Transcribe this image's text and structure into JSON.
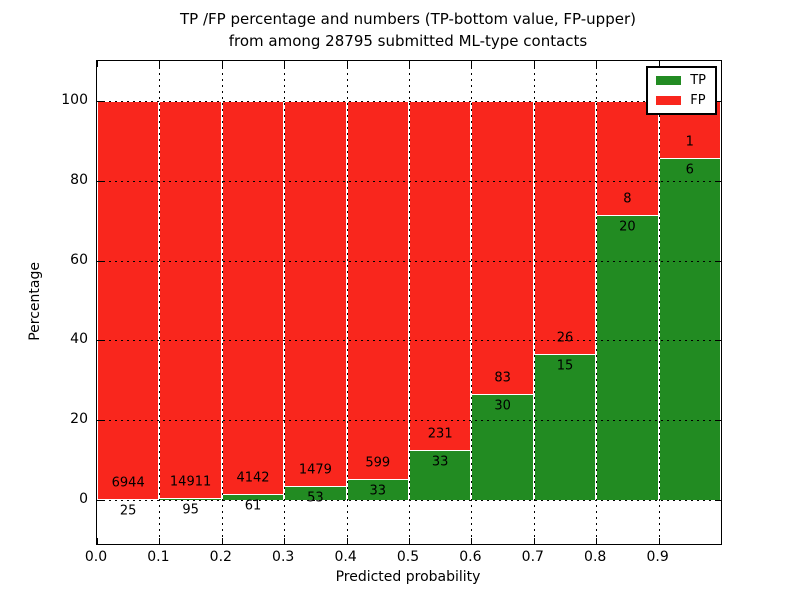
{
  "title": {
    "line1": "TP /FP percentage and numbers (TP-bottom value, FP-upper)",
    "line2": "from among 28795 submitted ML-type contacts"
  },
  "colors": {
    "tp_green": "#228b22",
    "fp_red": "#f9261d",
    "background": "#ffffff",
    "frame": "#000000",
    "grid": "#000000",
    "bar_edge": "#ffffff"
  },
  "chart_data": {
    "type": "bar",
    "stacked": true,
    "title": "TP /FP percentage and numbers (TP-bottom value, FP-upper) from among 28795 submitted ML-type contacts",
    "xlabel": "Predicted probability",
    "ylabel": "Percentage",
    "xlim": [
      0.0,
      1.0
    ],
    "ylim": [
      -11,
      110
    ],
    "xticks": [
      "0.0",
      "0.1",
      "0.2",
      "0.3",
      "0.4",
      "0.5",
      "0.6",
      "0.7",
      "0.8",
      "0.9"
    ],
    "yticks": [
      "0",
      "20",
      "40",
      "60",
      "80",
      "100"
    ],
    "ytick_values": [
      0,
      20,
      40,
      60,
      80,
      100
    ],
    "grid": true,
    "total_contacts": 28795,
    "legend": {
      "position": "upper right",
      "entries": [
        {
          "label": "TP",
          "color": "#228b22"
        },
        {
          "label": "FP",
          "color": "#f9261d"
        }
      ]
    },
    "categories": [
      "0.0-0.1",
      "0.1-0.2",
      "0.2-0.3",
      "0.3-0.4",
      "0.4-0.5",
      "0.5-0.6",
      "0.6-0.7",
      "0.7-0.8",
      "0.8-0.9",
      "0.9-1.0"
    ],
    "bins": [
      {
        "x0": 0.0,
        "x1": 0.1,
        "tp_count": 25,
        "fp_count": 6944,
        "tp_pct": 0.36,
        "fp_pct": 99.64
      },
      {
        "x0": 0.1,
        "x1": 0.2,
        "tp_count": 95,
        "fp_count": 14911,
        "tp_pct": 0.63,
        "fp_pct": 99.37
      },
      {
        "x0": 0.2,
        "x1": 0.3,
        "tp_count": 61,
        "fp_count": 4142,
        "tp_pct": 1.45,
        "fp_pct": 98.55
      },
      {
        "x0": 0.3,
        "x1": 0.4,
        "tp_count": 53,
        "fp_count": 1479,
        "tp_pct": 3.46,
        "fp_pct": 96.54
      },
      {
        "x0": 0.4,
        "x1": 0.5,
        "tp_count": 33,
        "fp_count": 599,
        "tp_pct": 5.22,
        "fp_pct": 94.78
      },
      {
        "x0": 0.5,
        "x1": 0.6,
        "tp_count": 33,
        "fp_count": 231,
        "tp_pct": 12.5,
        "fp_pct": 87.5
      },
      {
        "x0": 0.6,
        "x1": 0.7,
        "tp_count": 30,
        "fp_count": 83,
        "tp_pct": 26.55,
        "fp_pct": 73.45
      },
      {
        "x0": 0.7,
        "x1": 0.8,
        "tp_count": 15,
        "fp_count": 26,
        "tp_pct": 36.59,
        "fp_pct": 63.41
      },
      {
        "x0": 0.8,
        "x1": 0.9,
        "tp_count": 20,
        "fp_count": 8,
        "tp_pct": 71.43,
        "fp_pct": 28.57
      },
      {
        "x0": 0.9,
        "x1": 1.0,
        "tp_count": 6,
        "fp_count": 1,
        "tp_pct": 85.71,
        "fp_pct": 14.29
      }
    ],
    "series": [
      {
        "name": "TP",
        "values_pct": [
          0.36,
          0.63,
          1.45,
          3.46,
          5.22,
          12.5,
          26.55,
          36.59,
          71.43,
          85.71
        ]
      },
      {
        "name": "FP",
        "values_pct": [
          99.64,
          99.37,
          98.55,
          96.54,
          94.78,
          87.5,
          73.45,
          63.41,
          28.57,
          14.29
        ]
      }
    ]
  }
}
